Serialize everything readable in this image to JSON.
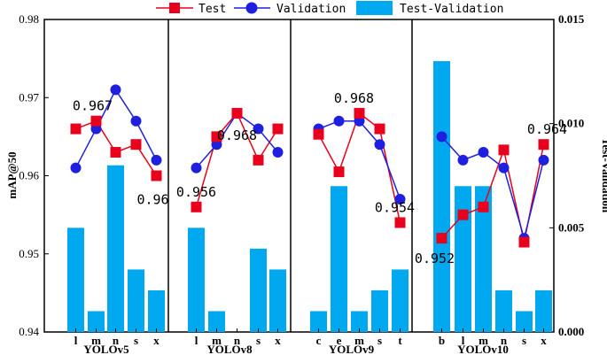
{
  "chart_data": {
    "type": "bar+line",
    "legend": {
      "position": "top",
      "items": [
        {
          "label": "Test",
          "color": "#e8001c",
          "marker": "square"
        },
        {
          "label": "Validation",
          "color": "#1f1fe0",
          "marker": "circle"
        },
        {
          "label": "Test-Validation",
          "color": "#00a8f0",
          "marker": "bar"
        }
      ]
    },
    "ylabel": "mAP@50",
    "y2label": "Test-Validation",
    "ylim": [
      0.94,
      0.98
    ],
    "y2lim": [
      0.0,
      0.015
    ],
    "yticks": [
      "0.94",
      "0.95",
      "0.96",
      "0.97",
      "0.98"
    ],
    "y2ticks": [
      "0.000",
      "0.005",
      "0.010",
      "0.015"
    ],
    "groups": [
      {
        "name": "YOLOv5",
        "categories": [
          "l",
          "m",
          "n",
          "s",
          "x"
        ],
        "test": [
          0.966,
          0.967,
          0.963,
          0.964,
          0.96
        ],
        "validation": [
          0.961,
          0.966,
          0.971,
          0.967,
          0.962
        ],
        "diff": [
          0.005,
          0.001,
          0.008,
          0.003,
          0.002
        ],
        "annotations": [
          {
            "text": "0.967",
            "point": 1
          },
          {
            "text": "0.96",
            "point": 4
          }
        ]
      },
      {
        "name": "YOLOv8",
        "categories": [
          "l",
          "m",
          "n",
          "s",
          "x"
        ],
        "test": [
          0.956,
          0.965,
          0.968,
          0.962,
          0.966
        ],
        "validation": [
          0.961,
          0.964,
          0.968,
          0.966,
          0.963
        ],
        "diff": [
          0.005,
          0.001,
          0.0,
          0.004,
          0.003
        ],
        "annotations": [
          {
            "text": "0.956",
            "point": 0
          },
          {
            "text": "0.968",
            "point": 2
          }
        ]
      },
      {
        "name": "YOLOv9",
        "categories": [
          "c",
          "e",
          "m",
          "s",
          "t"
        ],
        "test": [
          0.9653,
          0.9605,
          0.968,
          0.966,
          0.954
        ],
        "validation": [
          0.966,
          0.967,
          0.967,
          0.964,
          0.957
        ],
        "diff": [
          0.001,
          0.007,
          0.001,
          0.002,
          0.003
        ],
        "annotations": [
          {
            "text": "0.968",
            "point": 2
          },
          {
            "text": "0.954",
            "point": 4
          }
        ]
      },
      {
        "name": "YOLOv10",
        "categories": [
          "b",
          "l",
          "m",
          "n",
          "s",
          "x"
        ],
        "test": [
          0.952,
          0.955,
          0.956,
          0.9633,
          0.9515,
          0.964
        ],
        "validation": [
          0.965,
          0.962,
          0.963,
          0.961,
          0.952,
          0.962
        ],
        "diff": [
          0.013,
          0.007,
          0.007,
          0.002,
          0.001,
          0.002
        ],
        "annotations": [
          {
            "text": "0.952",
            "point": 0
          },
          {
            "text": "0.964",
            "point": 5
          }
        ]
      }
    ]
  }
}
